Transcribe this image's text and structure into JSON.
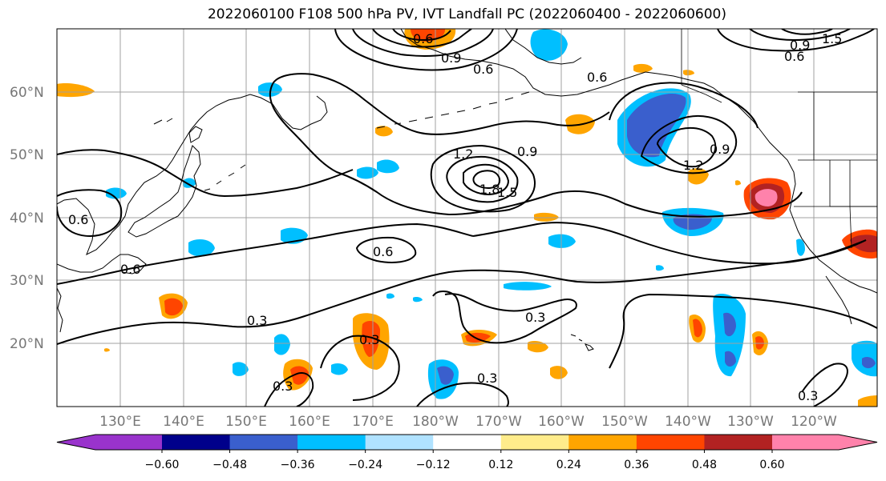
{
  "title": "2022060100 F108 500 hPa PV, IVT Landfall PC (2022060400 - 2022060600)",
  "lat_labels": [
    "60°N",
    "50°N",
    "40°N",
    "30°N",
    "20°N"
  ],
  "lon_labels": [
    "130°E",
    "140°E",
    "150°E",
    "160°E",
    "170°E",
    "180°W",
    "170°W",
    "160°W",
    "150°W",
    "140°W",
    "130°W",
    "120°W"
  ],
  "colorbar": {
    "colors": [
      "#9933cc",
      "#00008b",
      "#3a5fcd",
      "#00bfff",
      "#b0e2ff",
      "#ffffff",
      "#ffec8b",
      "#ffa500",
      "#ff4500",
      "#b22222",
      "#ff82ab"
    ],
    "tick_labels": [
      "−0.60",
      "−0.48",
      "−0.36",
      "−0.24",
      "−0.12",
      "0.12",
      "0.24",
      "0.36",
      "0.48",
      "0.60"
    ]
  },
  "contour_labels": [
    "0.6",
    "0.9",
    "1.2",
    "1.5",
    "1.8",
    "0.3",
    "0.6",
    "0.9",
    "1.2",
    "0.3",
    "0.3",
    "0.3",
    "0.3",
    "0.3",
    "0.6",
    "0.6",
    "0.6",
    "0.9",
    "1.2",
    "1.5"
  ]
}
